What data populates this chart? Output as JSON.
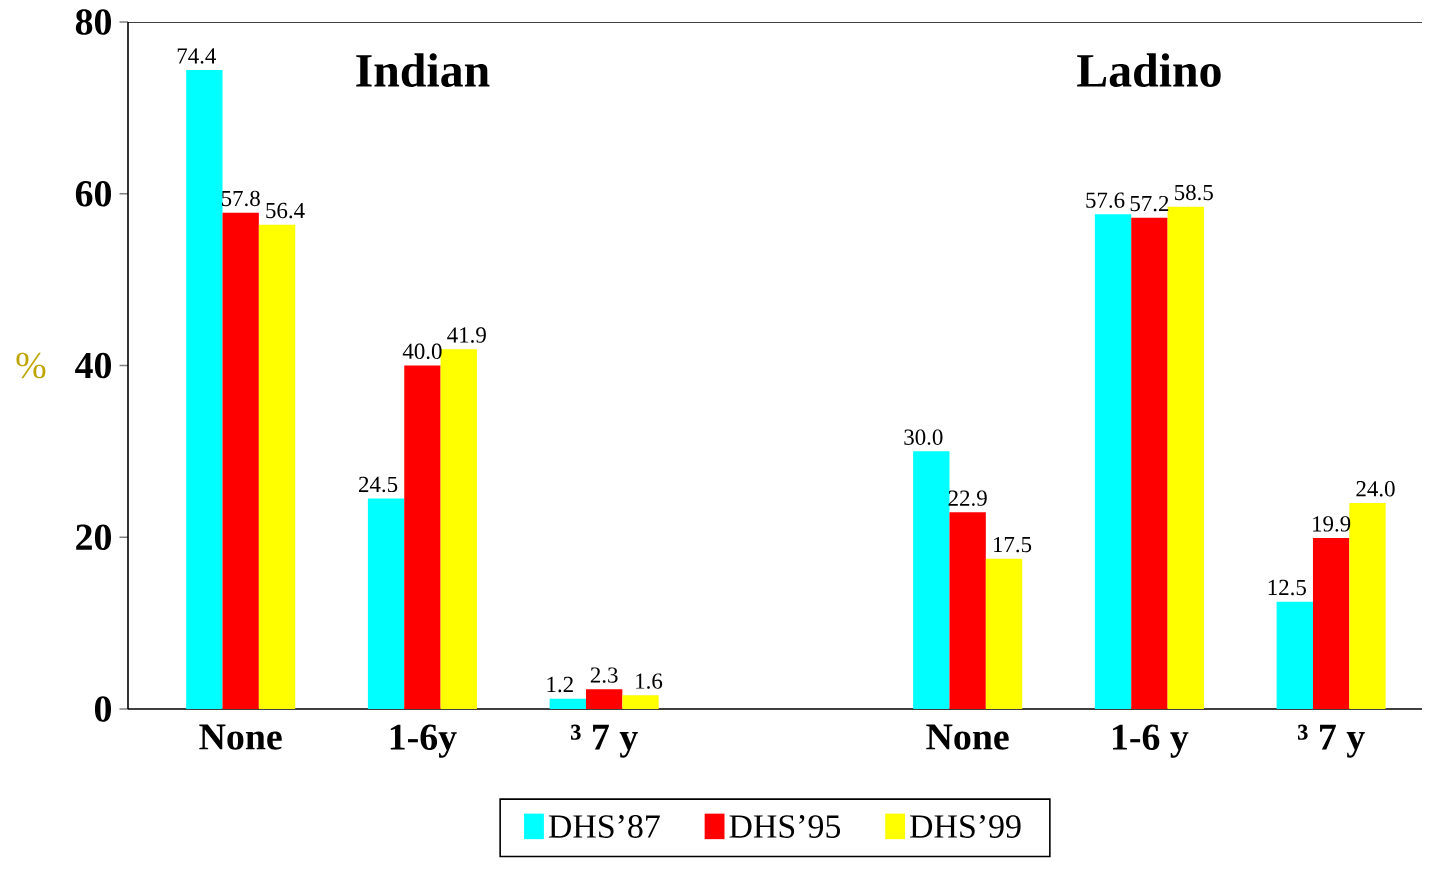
{
  "chart_data": {
    "type": "bar",
    "categories": [
      "None",
      "1-6y",
      "³ 7 y",
      null,
      "None",
      "1-6 y",
      "³ 7 y"
    ],
    "series": [
      {
        "name": "DHS’87",
        "color": "#00ffff",
        "values": [
          74.4,
          24.5,
          1.2,
          null,
          30.0,
          57.6,
          12.5
        ],
        "value_labels": [
          "74.4",
          "24.5",
          "1.2",
          null,
          "30.0",
          "57.6",
          "12.5"
        ]
      },
      {
        "name": "DHS’95",
        "color": "#ff0000",
        "values": [
          57.8,
          40.0,
          2.3,
          null,
          22.9,
          57.2,
          19.9
        ],
        "value_labels": [
          "57.8",
          "40.0",
          "2.3",
          null,
          "22.9",
          "57.2",
          "19.9"
        ]
      },
      {
        "name": "DHS’99",
        "color": "#ffff00",
        "values": [
          56.4,
          41.9,
          1.6,
          null,
          17.5,
          58.5,
          24.0
        ],
        "value_labels": [
          "56.4",
          "41.9",
          "1.6",
          null,
          "17.5",
          "58.5",
          "24.0"
        ]
      }
    ],
    "ylabel": "%",
    "ylim": [
      0,
      80
    ],
    "yticks": [
      0,
      20,
      40,
      60,
      80
    ],
    "grid": false,
    "legend": "bottom",
    "annotations": [
      "Indian",
      "Ladino"
    ]
  }
}
